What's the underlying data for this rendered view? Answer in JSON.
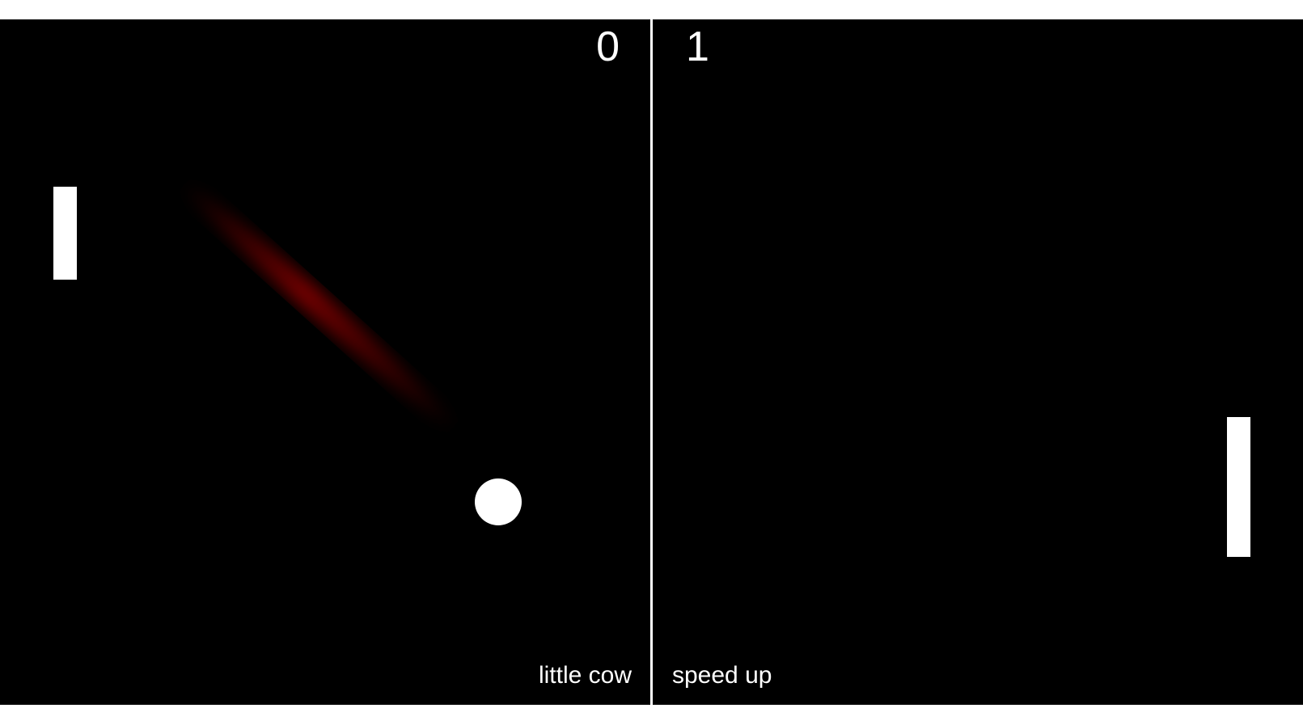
{
  "scores": {
    "left": "0",
    "right": "1"
  },
  "players": {
    "left_name": "little cow",
    "right_name": "speed up"
  },
  "colors": {
    "background": "#000000",
    "foreground": "#ffffff",
    "trail": "#8b0000"
  }
}
